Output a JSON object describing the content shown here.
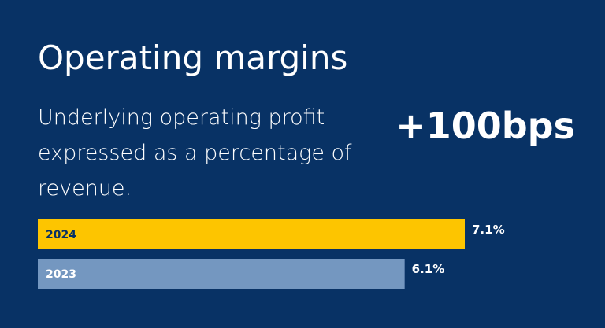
{
  "header": {
    "title": "Operating margins",
    "subtitle": "Underlying operating profit expressed as a percentage of revenue.",
    "headline": "+100bps"
  },
  "colors": {
    "background": "#083265",
    "bar_2024": "#FDC500",
    "bar_2023": "#7497C0",
    "bar_label_2024": "#083265",
    "bar_label_2023": "#ffffff"
  },
  "chart_data": {
    "type": "bar",
    "orientation": "horizontal",
    "categories": [
      "2024",
      "2023"
    ],
    "values": [
      7.1,
      6.1
    ],
    "value_labels": [
      "7.1%",
      "6.1%"
    ],
    "xlim": [
      0,
      7.1
    ],
    "grid": false,
    "legend": "none"
  }
}
